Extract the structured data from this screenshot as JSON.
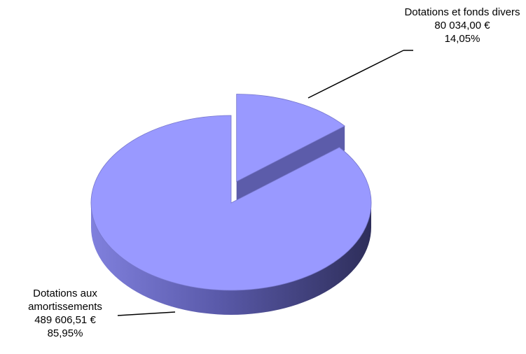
{
  "chart_data": {
    "type": "pie",
    "categories": [
      "Dotations aux amortissements",
      "Dotations et fonds divers"
    ],
    "values": [
      489606.51,
      80034.0
    ],
    "value_labels": [
      "489 606,51 €",
      "80 034,00 €"
    ],
    "percents": [
      85.95,
      14.05
    ],
    "percent_labels": [
      "85,95%",
      "14,05%"
    ],
    "color": "#9999ff",
    "exploded": [
      false,
      true
    ]
  }
}
